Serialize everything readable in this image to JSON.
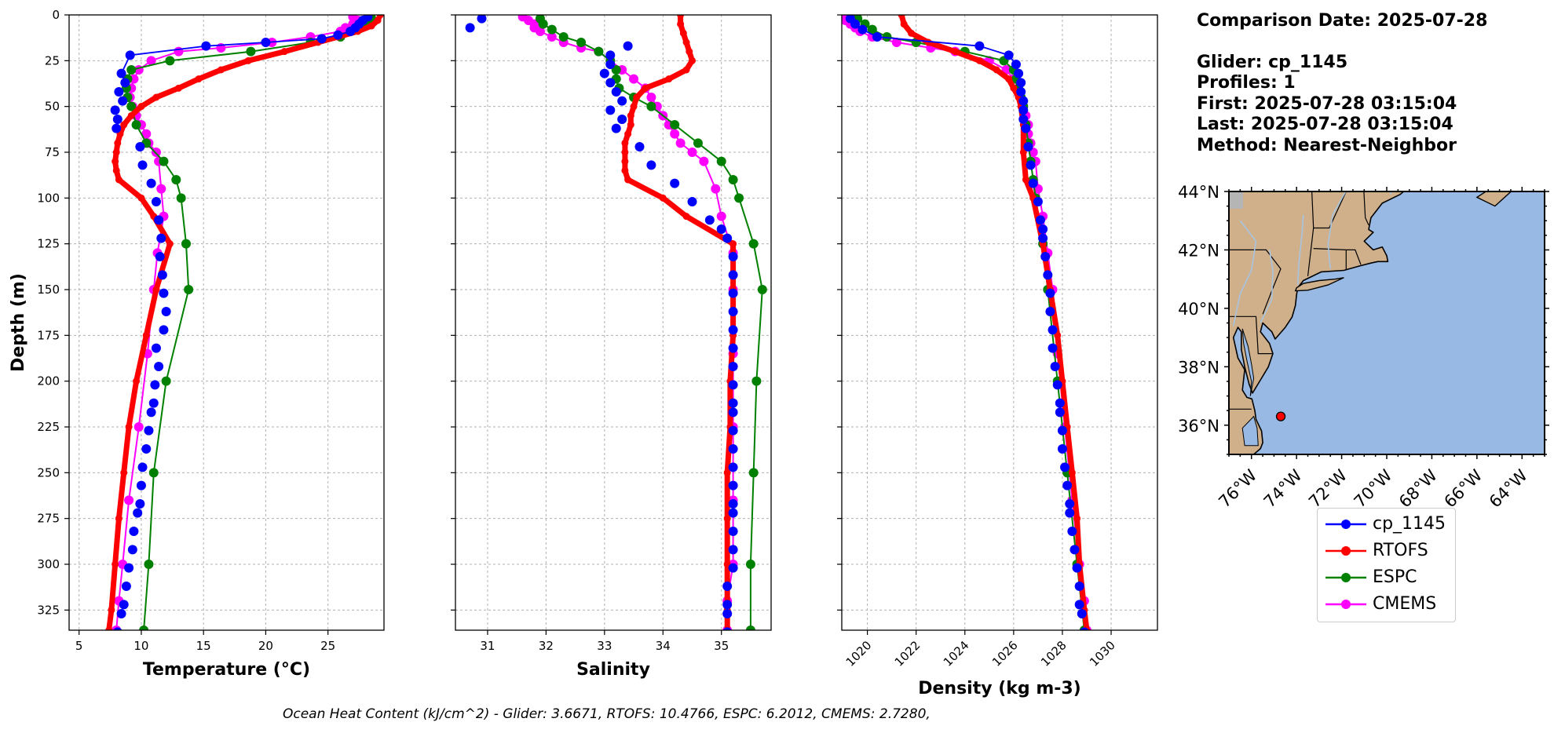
{
  "info": {
    "comparison_date": "Comparison Date: 2025-07-28",
    "glider": "Glider: cp_1145",
    "profiles": "Profiles: 1",
    "first": "First: 2025-07-28 03:15:04",
    "last": "Last: 2025-07-28 03:15:04",
    "method": "Method: Nearest-Neighbor"
  },
  "footer": "Ocean Heat Content (kJ/cm^2) - Glider: 3.6671,  RTOFS: 10.4766,  ESPC: 6.2012,  CMEMS: 2.7280,",
  "colors": {
    "glider": "#0000ff",
    "rtofs": "#ff0000",
    "espc": "#008000",
    "cmems": "#ff00ff",
    "land": "#cfb08a",
    "ocean": "#98b9e4",
    "rivers": "#a8c4e0",
    "grid": "#b0b0b0"
  },
  "legend": [
    {
      "label": "cp_1145",
      "color": "#0000ff"
    },
    {
      "label": "RTOFS",
      "color": "#ff0000"
    },
    {
      "label": "ESPC",
      "color": "#008000"
    },
    {
      "label": "CMEMS",
      "color": "#ff00ff"
    }
  ],
  "chart_data": [
    {
      "type": "line",
      "xlabel": "Temperature (°C)",
      "ylabel": "Depth (m)",
      "xlim": [
        4.2,
        29.5
      ],
      "ylim": [
        0,
        336
      ],
      "xticks": [
        5,
        10,
        15,
        20,
        25
      ],
      "yticks": [
        0,
        25,
        50,
        75,
        100,
        125,
        150,
        175,
        200,
        225,
        250,
        275,
        300,
        325
      ],
      "grid": true,
      "y_inverted": true,
      "series": [
        {
          "name": "cp_1145",
          "style": "dots",
          "color": "#0000ff",
          "depth": [
            1,
            3,
            5,
            7,
            9,
            11,
            13,
            15,
            17,
            22,
            32,
            37,
            42,
            47,
            52,
            57,
            62,
            72,
            82,
            92,
            102,
            112,
            122,
            132,
            142,
            152,
            162,
            172,
            182,
            192,
            202,
            212,
            217,
            227,
            237,
            247,
            257,
            267,
            272,
            282,
            292,
            302,
            312,
            322,
            327,
            337
          ],
          "values": [
            28.2,
            27.8,
            27.5,
            27.2,
            26.8,
            25.8,
            24.5,
            20.0,
            15.2,
            9.1,
            8.4,
            8.7,
            8.2,
            8.5,
            7.9,
            8.1,
            8.0,
            9.9,
            10.1,
            10.8,
            11.2,
            11.4,
            11.6,
            11.5,
            11.7,
            11.8,
            12.0,
            11.8,
            11.2,
            11.4,
            11.1,
            11.0,
            10.8,
            10.6,
            10.4,
            10.1,
            10.0,
            9.9,
            9.7,
            9.4,
            9.3,
            9.0,
            8.8,
            8.6,
            8.4,
            8.1
          ]
        },
        {
          "name": "RTOFS",
          "style": "thick",
          "color": "#ff0000",
          "depth": [
            0,
            3,
            6,
            9,
            12,
            15,
            20,
            25,
            30,
            35,
            40,
            45,
            50,
            55,
            60,
            65,
            70,
            75,
            80,
            85,
            90,
            100,
            110,
            125,
            150,
            175,
            200,
            225,
            250,
            275,
            300,
            325,
            336
          ],
          "values": [
            29.2,
            29.0,
            28.5,
            27.4,
            25.8,
            24.2,
            21.5,
            18.6,
            16.4,
            14.6,
            13.0,
            11.2,
            10.0,
            9.2,
            8.6,
            8.3,
            8.1,
            8.0,
            7.9,
            8.0,
            8.2,
            10.0,
            11.0,
            12.3,
            11.2,
            10.4,
            9.6,
            9.0,
            8.6,
            8.2,
            7.9,
            7.6,
            7.4
          ]
        },
        {
          "name": "ESPC",
          "style": "line-dots",
          "color": "#008000",
          "depth": [
            2,
            5,
            8,
            12,
            15,
            20,
            25,
            30,
            35,
            40,
            45,
            50,
            60,
            70,
            80,
            90,
            100,
            125,
            150,
            200,
            250,
            300,
            336
          ],
          "values": [
            28.5,
            28.0,
            27.4,
            26.0,
            23.6,
            18.8,
            12.3,
            9.2,
            8.9,
            8.8,
            8.9,
            9.2,
            9.6,
            10.4,
            11.8,
            12.8,
            13.2,
            13.6,
            13.8,
            12.0,
            11.0,
            10.6,
            10.2
          ]
        },
        {
          "name": "CMEMS",
          "style": "line-dots",
          "color": "#ff00ff",
          "depth": [
            1,
            3,
            5,
            7,
            9,
            12,
            15,
            18,
            20,
            25,
            30,
            35,
            40,
            45,
            50,
            55,
            60,
            65,
            70,
            75,
            80,
            95,
            110,
            130,
            150,
            185,
            225,
            265,
            300,
            320,
            336
          ],
          "values": [
            27.0,
            27.4,
            27.0,
            26.4,
            26.0,
            23.6,
            20.5,
            16.4,
            13.0,
            10.8,
            9.8,
            9.4,
            9.2,
            9.1,
            9.3,
            9.6,
            10.0,
            10.4,
            10.6,
            11.2,
            11.4,
            11.6,
            11.8,
            11.3,
            11.0,
            10.5,
            9.8,
            9.0,
            8.5,
            8.2,
            8.0
          ]
        }
      ]
    },
    {
      "type": "line",
      "xlabel": "Salinity",
      "ylabel": "",
      "xlim": [
        30.45,
        35.85
      ],
      "ylim": [
        0,
        336
      ],
      "xticks": [
        31,
        32,
        33,
        34,
        35
      ],
      "yticks": [
        0,
        25,
        50,
        75,
        100,
        125,
        150,
        175,
        200,
        225,
        250,
        275,
        300,
        325
      ],
      "grid": true,
      "y_inverted": true,
      "series": [
        {
          "name": "cp_1145",
          "style": "dots",
          "color": "#0000ff",
          "depth": [
            2,
            7,
            17,
            22,
            27,
            32,
            37,
            42,
            47,
            52,
            57,
            62,
            72,
            82,
            92,
            102,
            112,
            117,
            122,
            132,
            142,
            152,
            162,
            172,
            182,
            192,
            202,
            212,
            217,
            227,
            237,
            247,
            257,
            267,
            272,
            282,
            292,
            302,
            312,
            322,
            327,
            337
          ],
          "values": [
            30.9,
            30.7,
            33.4,
            33.1,
            33.1,
            33.0,
            33.1,
            33.2,
            33.3,
            33.1,
            33.3,
            33.2,
            33.6,
            33.8,
            34.2,
            34.5,
            34.8,
            35.0,
            35.1,
            35.2,
            35.2,
            35.2,
            35.2,
            35.2,
            35.2,
            35.2,
            35.2,
            35.2,
            35.2,
            35.2,
            35.2,
            35.2,
            35.2,
            35.2,
            35.2,
            35.2,
            35.2,
            35.2,
            35.1,
            35.1,
            35.1,
            35.1
          ]
        },
        {
          "name": "RTOFS",
          "style": "thick",
          "color": "#ff0000",
          "depth": [
            0,
            5,
            10,
            15,
            20,
            25,
            30,
            35,
            40,
            45,
            50,
            55,
            60,
            65,
            70,
            75,
            80,
            85,
            90,
            100,
            110,
            125,
            150,
            175,
            200,
            225,
            250,
            275,
            300,
            325,
            336
          ],
          "values": [
            34.3,
            34.3,
            34.35,
            34.4,
            34.45,
            34.5,
            34.4,
            34.1,
            33.7,
            33.55,
            33.5,
            33.45,
            33.45,
            33.4,
            33.35,
            33.35,
            33.35,
            33.35,
            33.4,
            34.0,
            34.4,
            35.2,
            35.2,
            35.2,
            35.15,
            35.15,
            35.1,
            35.1,
            35.1,
            35.1,
            35.1
          ]
        },
        {
          "name": "ESPC",
          "style": "line-dots",
          "color": "#008000",
          "depth": [
            2,
            5,
            8,
            12,
            15,
            20,
            25,
            30,
            35,
            40,
            45,
            50,
            60,
            70,
            80,
            90,
            100,
            125,
            150,
            200,
            250,
            300,
            336
          ],
          "values": [
            31.9,
            31.95,
            32.1,
            32.3,
            32.6,
            32.9,
            33.1,
            33.2,
            33.2,
            33.25,
            33.5,
            33.8,
            34.2,
            34.6,
            35.0,
            35.2,
            35.3,
            35.55,
            35.7,
            35.6,
            35.55,
            35.5,
            35.5
          ]
        },
        {
          "name": "CMEMS",
          "style": "line-dots",
          "color": "#ff00ff",
          "depth": [
            1,
            3,
            5,
            7,
            9,
            12,
            15,
            18,
            20,
            25,
            30,
            35,
            40,
            45,
            50,
            55,
            60,
            65,
            70,
            75,
            80,
            95,
            110,
            130,
            150,
            185,
            225,
            265,
            300,
            320,
            336
          ],
          "values": [
            31.6,
            31.7,
            31.8,
            31.8,
            31.9,
            32.1,
            32.3,
            32.6,
            32.9,
            33.1,
            33.3,
            33.5,
            33.7,
            33.8,
            33.9,
            34.0,
            34.1,
            34.2,
            34.3,
            34.5,
            34.7,
            34.9,
            35.0,
            35.2,
            35.2,
            35.2,
            35.2,
            35.2,
            35.2,
            35.1,
            35.1
          ]
        }
      ]
    },
    {
      "type": "line",
      "xlabel": "Density (kg m-3)",
      "ylabel": "",
      "xlim": [
        1018.95,
        1031.9
      ],
      "ylim": [
        0,
        336
      ],
      "xticks": [
        1020,
        1022,
        1024,
        1026,
        1028,
        1030
      ],
      "yticks": [
        0,
        25,
        50,
        75,
        100,
        125,
        150,
        175,
        200,
        225,
        250,
        275,
        300,
        325
      ],
      "grid": true,
      "y_inverted": true,
      "series": [
        {
          "name": "cp_1145",
          "style": "dots",
          "color": "#0000ff",
          "depth": [
            2,
            5,
            8,
            12,
            17,
            22,
            27,
            32,
            37,
            42,
            47,
            52,
            57,
            62,
            72,
            82,
            92,
            102,
            112,
            117,
            122,
            132,
            142,
            152,
            162,
            172,
            182,
            192,
            202,
            212,
            217,
            227,
            237,
            247,
            257,
            267,
            272,
            282,
            292,
            302,
            312,
            322,
            327,
            337
          ],
          "values": [
            1019.3,
            1019.5,
            1019.8,
            1020.4,
            1024.6,
            1025.8,
            1026.1,
            1026.2,
            1026.3,
            1026.3,
            1026.4,
            1026.4,
            1026.4,
            1026.5,
            1026.6,
            1026.7,
            1026.8,
            1027.0,
            1027.1,
            1027.2,
            1027.2,
            1027.3,
            1027.4,
            1027.5,
            1027.5,
            1027.6,
            1027.6,
            1027.7,
            1027.8,
            1027.9,
            1027.9,
            1028.0,
            1028.0,
            1028.1,
            1028.2,
            1028.3,
            1028.3,
            1028.4,
            1028.5,
            1028.6,
            1028.7,
            1028.7,
            1028.8,
            1028.9
          ]
        },
        {
          "name": "RTOFS",
          "style": "thick",
          "color": "#ff0000",
          "depth": [
            0,
            5,
            10,
            15,
            20,
            25,
            30,
            35,
            40,
            45,
            50,
            60,
            75,
            90,
            100,
            125,
            150,
            175,
            200,
            225,
            250,
            275,
            300,
            325,
            336
          ],
          "values": [
            1021.4,
            1021.5,
            1021.8,
            1022.5,
            1023.6,
            1024.6,
            1025.3,
            1025.8,
            1026.0,
            1026.2,
            1026.3,
            1026.4,
            1026.4,
            1026.5,
            1026.8,
            1027.2,
            1027.5,
            1027.8,
            1028.0,
            1028.2,
            1028.4,
            1028.6,
            1028.7,
            1028.9,
            1029.0
          ]
        },
        {
          "name": "ESPC",
          "style": "line-dots",
          "color": "#008000",
          "depth": [
            2,
            5,
            8,
            12,
            15,
            20,
            25,
            30,
            35,
            40,
            45,
            50,
            60,
            70,
            80,
            90,
            100,
            125,
            150,
            200,
            250,
            300,
            336
          ],
          "values": [
            1019.6,
            1019.9,
            1020.2,
            1020.8,
            1022.0,
            1024.0,
            1025.6,
            1026.0,
            1026.1,
            1026.2,
            1026.3,
            1026.4,
            1026.5,
            1026.6,
            1026.7,
            1026.8,
            1026.9,
            1027.2,
            1027.4,
            1027.8,
            1028.2,
            1028.6,
            1028.9
          ]
        },
        {
          "name": "CMEMS",
          "style": "line-dots",
          "color": "#ff00ff",
          "depth": [
            1,
            3,
            5,
            7,
            9,
            12,
            15,
            18,
            20,
            25,
            30,
            35,
            40,
            45,
            50,
            55,
            60,
            65,
            70,
            75,
            80,
            95,
            110,
            130,
            150,
            185,
            225,
            265,
            300,
            320,
            336
          ],
          "values": [
            1019.0,
            1019.1,
            1019.3,
            1019.5,
            1019.7,
            1020.2,
            1021.2,
            1022.6,
            1023.6,
            1025.0,
            1025.7,
            1026.0,
            1026.2,
            1026.3,
            1026.4,
            1026.5,
            1026.6,
            1026.6,
            1026.7,
            1026.8,
            1026.9,
            1027.0,
            1027.2,
            1027.4,
            1027.6,
            1027.8,
            1028.1,
            1028.4,
            1028.7,
            1028.9,
            1029.0
          ]
        }
      ]
    },
    {
      "type": "map",
      "lon_range": [
        -77,
        -63
      ],
      "lat_range": [
        35,
        44
      ],
      "lat_ticks": [
        36,
        38,
        40,
        42,
        44
      ],
      "lon_ticks": [
        -76,
        -74,
        -72,
        -70,
        -68,
        -66,
        -64
      ],
      "lat_labels": [
        "36°N",
        "38°N",
        "40°N",
        "42°N",
        "44°N"
      ],
      "lon_labels": [
        "76°W",
        "74°W",
        "72°W",
        "70°W",
        "68°W",
        "66°W",
        "64°W"
      ],
      "glider_position": {
        "lon": -74.7,
        "lat": 36.3,
        "color": "#ff0000"
      }
    }
  ]
}
